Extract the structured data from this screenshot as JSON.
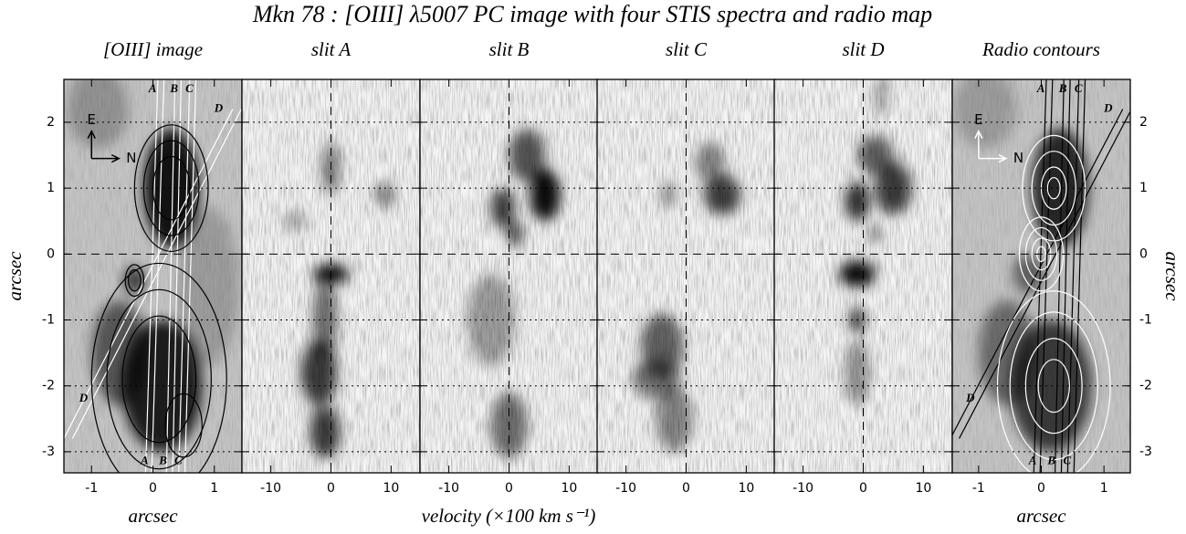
{
  "title": "Mkn 78 : [OIII] λ5007 PC image with four STIS spectra and radio map",
  "velocity_label": "velocity (×100 km s⁻¹)",
  "slit_labels": [
    "A",
    "B",
    "C",
    "D"
  ],
  "compass": [
    "E",
    "N"
  ],
  "chart_data": [
    {
      "type": "image",
      "title": "[OIII] image",
      "xlim": [
        -1.45,
        1.45
      ],
      "xticks": [
        -1,
        0,
        1
      ],
      "ylim": [
        -3.32,
        2.65
      ],
      "yticks": [
        -3,
        -2,
        -1,
        0,
        1,
        2
      ],
      "xlabel": "arcsec",
      "ylabel": "arcsec"
    },
    {
      "type": "spectrum",
      "title": "slit A",
      "xlim": [
        -14.8,
        14.8
      ],
      "xticks": [
        -10,
        0,
        10
      ],
      "ylim": [
        -3.32,
        2.65
      ],
      "yticks": [
        -3,
        -2,
        -1,
        0,
        1,
        2
      ]
    },
    {
      "type": "spectrum",
      "title": "slit B",
      "xlim": [
        -14.8,
        14.8
      ],
      "xticks": [
        -10,
        0,
        10
      ],
      "ylim": [
        -3.32,
        2.65
      ],
      "yticks": [
        -3,
        -2,
        -1,
        0,
        1,
        2
      ]
    },
    {
      "type": "spectrum",
      "title": "slit C",
      "xlim": [
        -14.8,
        14.8
      ],
      "xticks": [
        -10,
        0,
        10
      ],
      "ylim": [
        -3.32,
        2.65
      ],
      "yticks": [
        -3,
        -2,
        -1,
        0,
        1,
        2
      ]
    },
    {
      "type": "spectrum",
      "title": "slit D",
      "xlim": [
        -14.8,
        14.8
      ],
      "xticks": [
        -10,
        0,
        10
      ],
      "ylim": [
        -3.32,
        2.65
      ],
      "yticks": [
        -3,
        -2,
        -1,
        0,
        1,
        2
      ]
    },
    {
      "type": "radio",
      "title": "Radio contours",
      "xlim": [
        -1.42,
        1.42
      ],
      "xticks": [
        -1,
        0,
        1
      ],
      "ylim": [
        -3.32,
        2.65
      ],
      "yticks": [
        -3,
        -2,
        -1,
        0,
        1,
        2
      ],
      "xlabel": "arcsec",
      "ylabel": "arcsec"
    }
  ]
}
